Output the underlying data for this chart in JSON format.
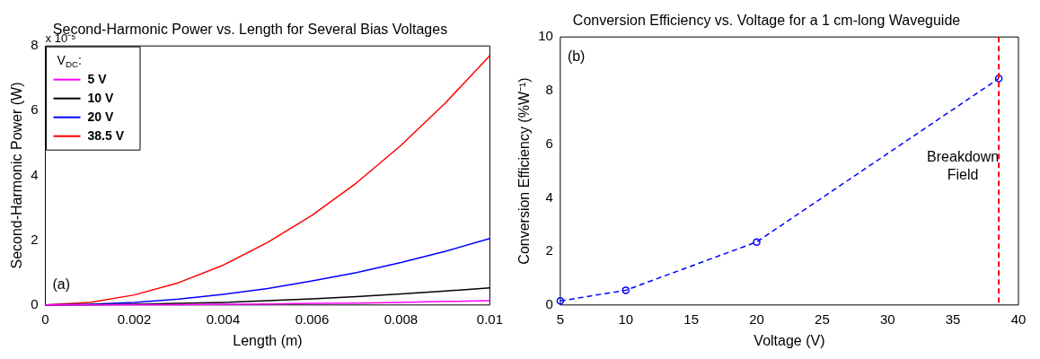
{
  "chart_data": [
    {
      "type": "line",
      "title": "Second-Harmonic Power vs. Length for Several Bias Voltages",
      "xlabel": "Length (m)",
      "ylabel": "Second-Harmonic Power (W)",
      "legend_title": "V$_{DC}$:",
      "legend": "top left",
      "grid": false,
      "marker": "none",
      "line_style": "solid",
      "x": [
        0,
        0.001,
        0.002,
        0.003,
        0.004,
        0.005,
        0.006,
        0.007,
        0.008,
        0.009,
        0.01
      ],
      "xlim": [
        0,
        0.01
      ],
      "xticks": [
        0,
        0.002,
        0.004,
        0.006,
        0.008,
        0.01
      ],
      "ylim": [
        0,
        8
      ],
      "yticks": [
        0,
        2,
        4,
        6,
        8
      ],
      "series": [
        {
          "name": "5 V",
          "color": "#ff00ff",
          "values": [
            0,
            0,
            0.01,
            0.01,
            0.02,
            0.03,
            0.05,
            0.06,
            0.08,
            0.11,
            0.13
          ]
        },
        {
          "name": "10 V",
          "color": "#000000",
          "values": [
            0,
            0.01,
            0.02,
            0.05,
            0.08,
            0.13,
            0.19,
            0.26,
            0.34,
            0.43,
            0.53
          ]
        },
        {
          "name": "20 V",
          "color": "#0000ff",
          "values": [
            0,
            0.02,
            0.08,
            0.18,
            0.33,
            0.51,
            0.74,
            1.0,
            1.31,
            1.66,
            2.05
          ]
        },
        {
          "name": "38.5 V",
          "color": "#ff0000",
          "values": [
            0,
            0.08,
            0.31,
            0.69,
            1.23,
            1.93,
            2.77,
            3.77,
            4.93,
            6.24,
            7.7
          ]
        }
      ],
      "annotations": [
        "(a)",
        "x 10⁻⁵"
      ]
    },
    {
      "type": "line",
      "title": "Conversion Efficiency vs. Voltage for a 1 cm-long Waveguide",
      "xlabel": "Voltage (V)",
      "ylabel": "Conversion Efficiency (%W⁻¹)",
      "grid": false,
      "marker": "circle",
      "line_style": "dashed",
      "x": [
        5,
        10,
        20,
        38.5
      ],
      "xlim": [
        5,
        40
      ],
      "xticks": [
        5,
        10,
        15,
        20,
        25,
        30,
        35,
        40
      ],
      "ylim": [
        0,
        10
      ],
      "yticks": [
        0,
        2,
        4,
        6,
        8,
        10
      ],
      "series": [
        {
          "color": "#0000ff",
          "values": [
            0.15,
            0.55,
            2.35,
            8.45
          ]
        }
      ],
      "ref_lines": [
        {
          "axis": "x",
          "value": 38.5,
          "label": "Breakdown Field",
          "color": "#ff0000",
          "line_style": "dashed"
        }
      ],
      "annotations": [
        "(b)"
      ]
    }
  ]
}
